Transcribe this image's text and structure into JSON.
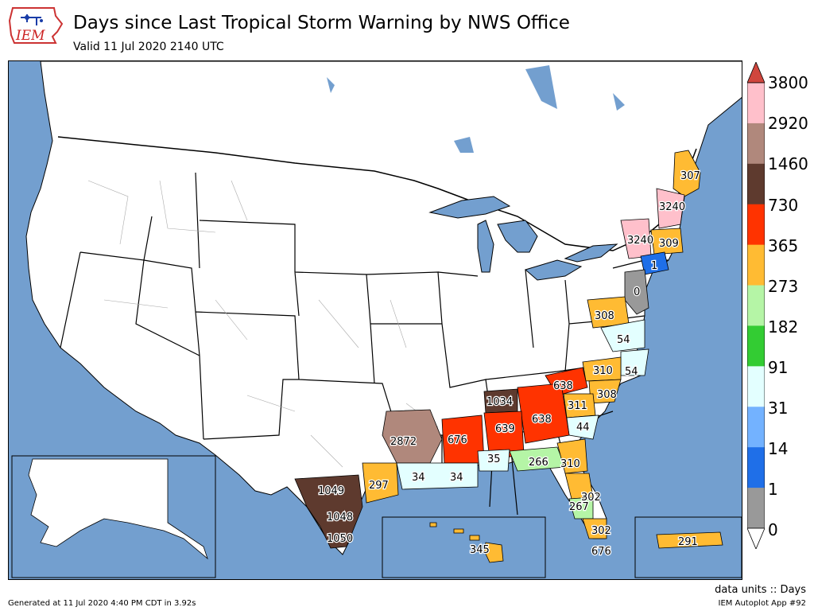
{
  "header": {
    "title": "Days since Last Tropical Storm Warning by NWS Office",
    "subtitle": "Valid 11 Jul 2020 2140 UTC",
    "logo_text": "IEM"
  },
  "legend": {
    "ticks": [
      "3800",
      "2920",
      "1460",
      "730",
      "365",
      "273",
      "182",
      "91",
      "31",
      "14",
      "1",
      "0"
    ],
    "colors": [
      "#ffc0cb",
      "#b0887c",
      "#5e3a2e",
      "#ff3300",
      "#ffbb33",
      "#b5f5a6",
      "#33cc33",
      "#e3ffff",
      "#73b2ff",
      "#1f6fe8",
      "#999999"
    ],
    "over_color": "#d0463d",
    "under_color": "#ffffff",
    "units": "data units :: Days"
  },
  "map": {
    "ocean_color": "#739fcf",
    "land_color": "#ffffff",
    "labels": [
      "307",
      "3240",
      "3240",
      "309",
      "1",
      "0",
      "308",
      "54",
      "54",
      "310",
      "308",
      "638",
      "1034",
      "311",
      "638",
      "639",
      "44",
      "676",
      "2872",
      "35",
      "266",
      "310",
      "34",
      "34",
      "297",
      "1049",
      "302",
      "267",
      "1048",
      "302",
      "1050",
      "676",
      "345",
      "291"
    ]
  },
  "footer": {
    "left": "Generated at 11 Jul 2020 4:40 PM CDT in 3.92s",
    "right": "IEM Autoplot App #92"
  }
}
